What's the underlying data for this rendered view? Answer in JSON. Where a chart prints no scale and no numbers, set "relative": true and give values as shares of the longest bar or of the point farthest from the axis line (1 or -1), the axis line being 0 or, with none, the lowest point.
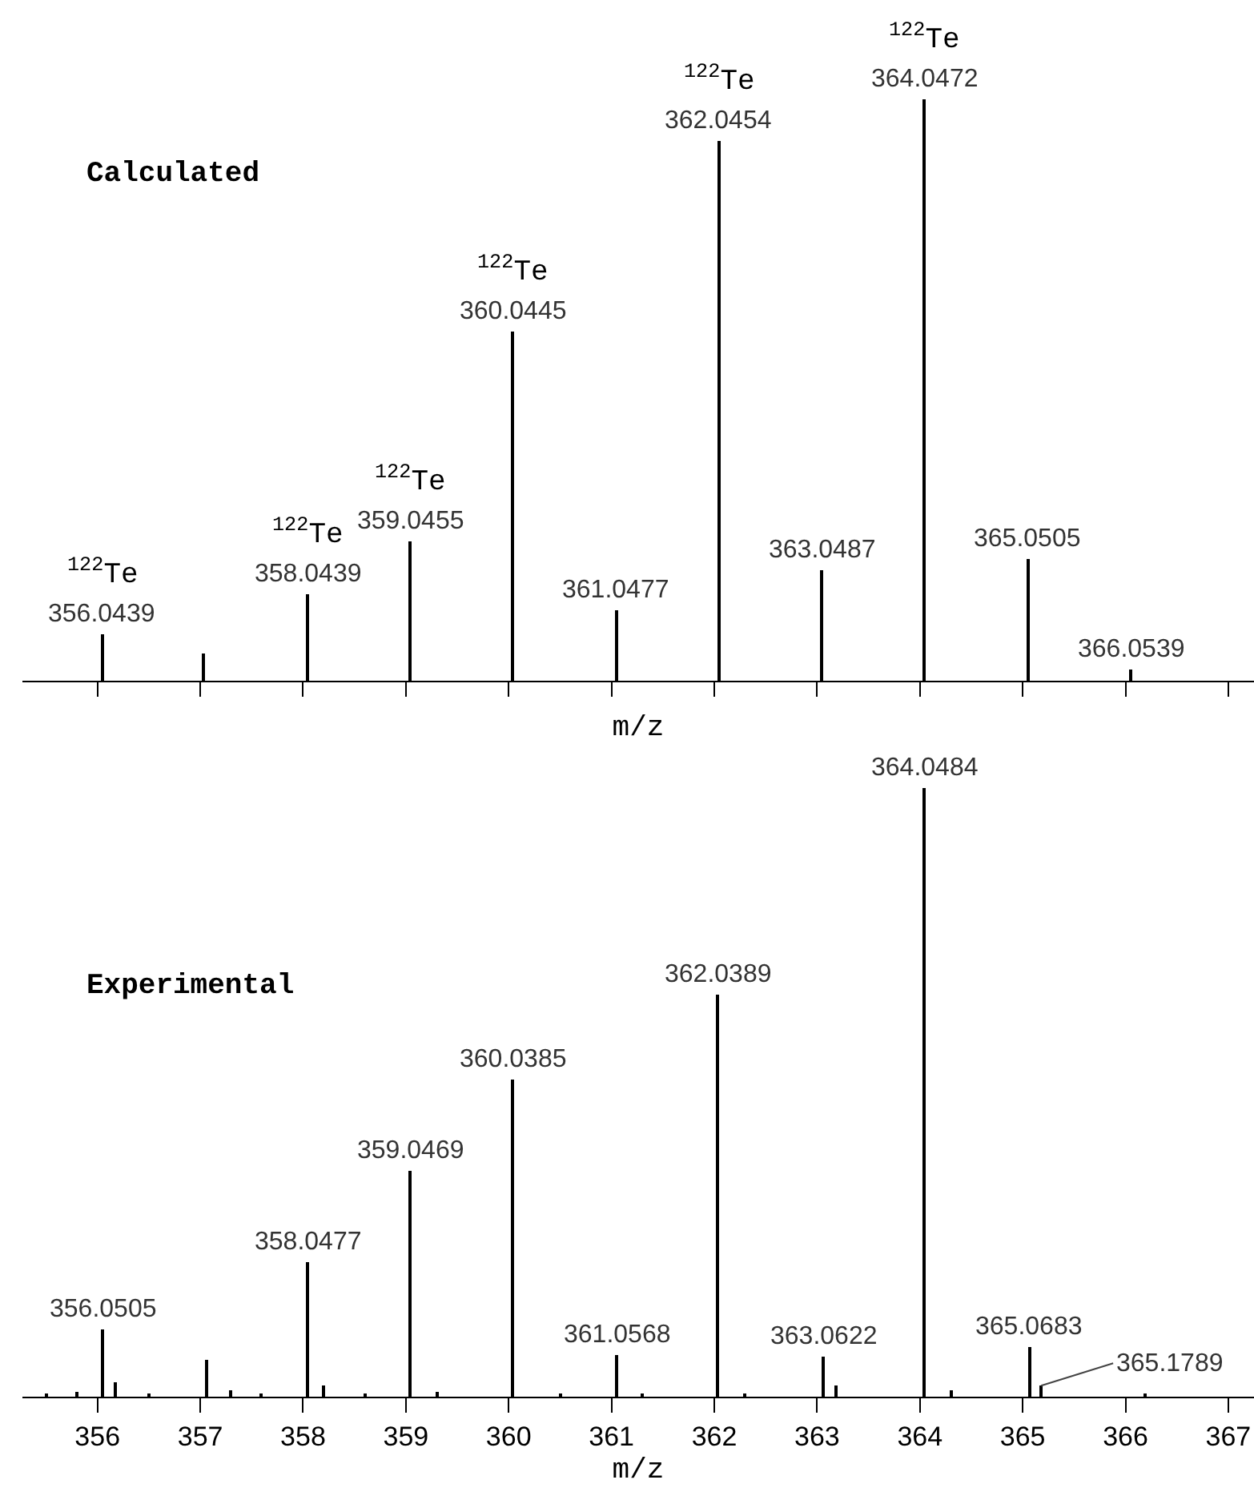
{
  "chart_data": [
    {
      "type": "bar",
      "title": "Calculated",
      "xlabel": "m/z",
      "relative": true,
      "color": "#000000",
      "tick_labels": false,
      "xlim": [
        355.27,
        367.25
      ],
      "xticks": [
        356,
        357,
        358,
        359,
        360,
        361,
        362,
        363,
        364,
        365,
        366,
        367
      ],
      "x": [
        356.0439,
        357.03,
        358.0439,
        359.0455,
        360.0445,
        361.0477,
        362.0454,
        363.0487,
        364.0472,
        365.0505,
        366.0539
      ],
      "values": [
        0.08,
        0.047,
        0.15,
        0.24,
        0.6,
        0.12,
        0.93,
        0.19,
        1,
        0.21,
        0.02
      ],
      "annotations": [
        {
          "text": "356.0439",
          "x": 356.0439,
          "y": 0.08
        },
        {
          "text": "358.0439",
          "x": 358.0439,
          "y": 0.15
        },
        {
          "text": "359.0455",
          "x": 359.0455,
          "y": 0.24
        },
        {
          "text": "360.0445",
          "x": 360.0445,
          "y": 0.6
        },
        {
          "text": "361.0477",
          "x": 361.0477,
          "y": 0.12
        },
        {
          "text": "362.0454",
          "x": 362.0454,
          "y": 0.93
        },
        {
          "text": "363.0487",
          "x": 363.0487,
          "y": 0.19
        },
        {
          "text": "364.0472",
          "x": 364.0472,
          "y": 1
        },
        {
          "text": "365.0505",
          "x": 365.0505,
          "y": 0.21
        },
        {
          "text": "366.0539",
          "x": 366.0539,
          "y": 0.02
        },
        {
          "text": "$^{122}$Te",
          "x": 356.0439,
          "y": 0.08
        },
        {
          "text": "$^{122}$Te",
          "x": 358.0439,
          "y": 0.15
        },
        {
          "text": "$^{122}$Te",
          "x": 359.0455,
          "y": 0.24
        },
        {
          "text": "$^{122}$Te",
          "x": 360.0445,
          "y": 0.6
        },
        {
          "text": "$^{122}$Te",
          "x": 362.0454,
          "y": 0.93
        },
        {
          "text": "$^{122}$Te",
          "x": 364.0472,
          "y": 1
        }
      ]
    },
    {
      "type": "bar",
      "title": "Experimental",
      "xlabel": "m/z",
      "relative": true,
      "color": "#000000",
      "tick_labels": "x",
      "xlim": [
        355.27,
        367.25
      ],
      "xticks": [
        356,
        357,
        358,
        359,
        360,
        361,
        362,
        363,
        364,
        365,
        366,
        367
      ],
      "x": [
        355.5,
        355.8,
        356.0505,
        356.18,
        356.5,
        357.07,
        357.3,
        357.6,
        358.0477,
        358.2,
        358.6,
        359.0469,
        359.3,
        360.0385,
        360.5,
        361.0568,
        361.3,
        362.0389,
        362.3,
        363.0622,
        363.18,
        364.0484,
        364.3,
        365.0683,
        365.1789,
        366.2
      ],
      "values": [
        0.006,
        0.008,
        0.11,
        0.024,
        0.006,
        0.06,
        0.01,
        0.006,
        0.22,
        0.018,
        0.006,
        0.37,
        0.008,
        0.52,
        0.005,
        0.068,
        0.006,
        0.66,
        0.005,
        0.066,
        0.018,
        1,
        0.01,
        0.081,
        0.018,
        0.005
      ],
      "annotations": [
        {
          "text": "356.0505",
          "x": 356.0505,
          "y": 0.11
        },
        {
          "text": "358.0477",
          "x": 358.0477,
          "y": 0.22
        },
        {
          "text": "359.0469",
          "x": 359.0469,
          "y": 0.37
        },
        {
          "text": "360.0385",
          "x": 360.0385,
          "y": 0.52
        },
        {
          "text": "361.0568",
          "x": 361.0568,
          "y": 0.068
        },
        {
          "text": "362.0389",
          "x": 362.0389,
          "y": 0.66
        },
        {
          "text": "363.0622",
          "x": 363.0622,
          "y": 0.066
        },
        {
          "text": "364.0484",
          "x": 364.0484,
          "y": 1
        },
        {
          "text": "365.0683",
          "x": 365.0683,
          "y": 0.081
        },
        {
          "text": "365.1789",
          "x": 365.1789,
          "y": 0.018
        }
      ]
    }
  ]
}
